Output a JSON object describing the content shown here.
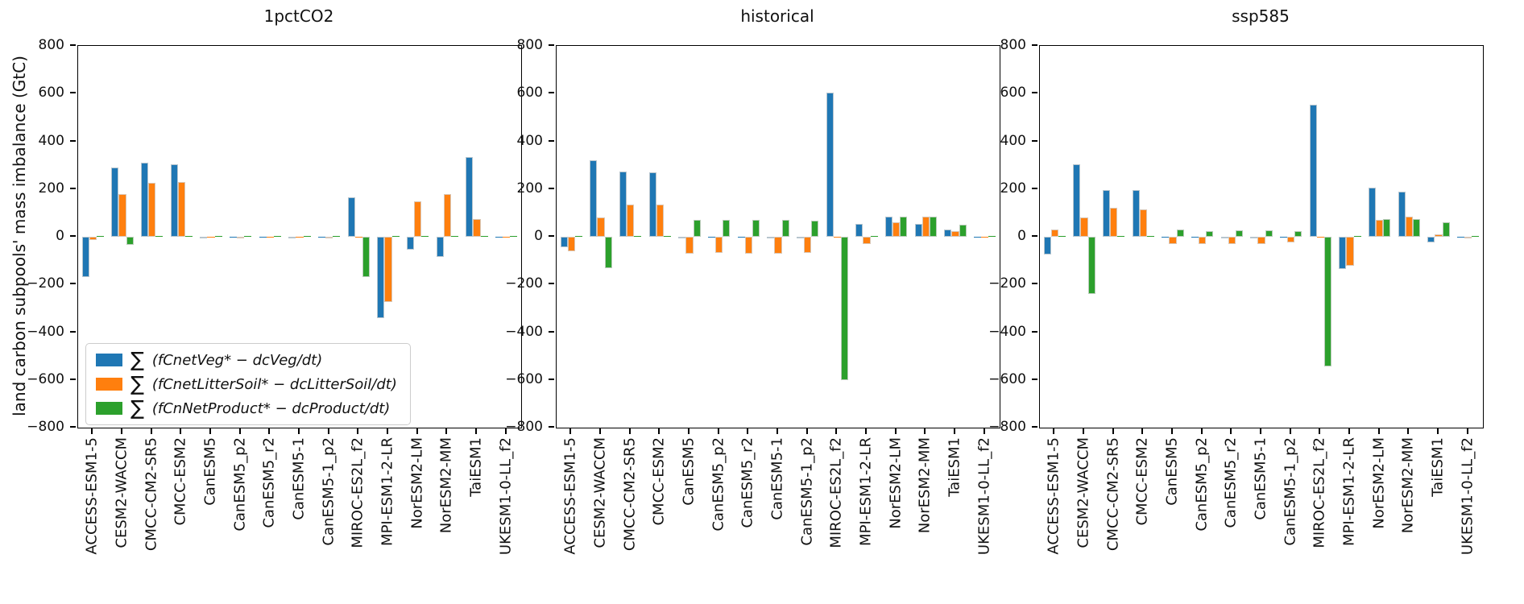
{
  "figure": {
    "ylabel": "land carbon subpools' mass imbalance (GtC)",
    "background_color": "#ffffff",
    "series_colors": {
      "veg": "#1f77b4",
      "litter_soil": "#ff7f0e",
      "product": "#2ca02c"
    }
  },
  "legend": {
    "position": "lower left of first panel",
    "items": [
      {
        "sigma": "∑",
        "formula": "(fCnetVeg* − dcVeg/dt)",
        "label": "∑(fCnetVeg* − dcVeg/dt)",
        "color": "#1f77b4"
      },
      {
        "sigma": "∑",
        "formula": "(fCnetLitterSoil* − dcLitterSoil/dt)",
        "label": "∑(fCnetLitterSoil* − dcLitterSoil/dt)",
        "color": "#ff7f0e"
      },
      {
        "sigma": "∑",
        "formula": "(fCnNetProduct* − dcProduct/dt)",
        "label": "∑(fCnNetProduct* − dcProduct/dt)",
        "color": "#2ca02c"
      }
    ]
  },
  "chart_data": [
    {
      "type": "bar",
      "title": "1pctCO2",
      "ylim": [
        -800,
        800
      ],
      "yticks": [
        800,
        600,
        400,
        200,
        0,
        -200,
        -400,
        -600,
        -800
      ],
      "grid": false,
      "categories": [
        "ACCESS-ESM1-5",
        "CESM2-WACCM",
        "CMCC-CM2-SR5",
        "CMCC-ESM2",
        "CanESM5",
        "CanESM5_p2",
        "CanESM5_r2",
        "CanESM5-1",
        "CanESM5-1_p2",
        "MIROC-ES2L_f2",
        "MPI-ESM1-2-LR",
        "NorESM2-LM",
        "NorESM2-MM",
        "TaiESM1",
        "UKESM1-0-LL_f2"
      ],
      "series": [
        {
          "name": "∑(fCnetVeg* − dcVeg/dt)",
          "color": "#1f77b4",
          "values": [
            -170,
            290,
            310,
            305,
            -5,
            -2,
            -3,
            -8,
            -2,
            165,
            -340,
            -55,
            -85,
            335,
            -2
          ]
        },
        {
          "name": "∑(fCnetLitterSoil* − dcLitterSoil/dt)",
          "color": "#ff7f0e",
          "values": [
            -15,
            180,
            225,
            230,
            -2,
            -5,
            -2,
            -2,
            -5,
            -3,
            -275,
            150,
            180,
            75,
            -3
          ]
        },
        {
          "name": "∑(fCnNetProduct* − dcProduct/dt)",
          "color": "#2ca02c",
          "values": [
            0,
            -35,
            0,
            0,
            0,
            0,
            0,
            0,
            0,
            -170,
            0,
            0,
            0,
            0,
            0
          ]
        }
      ]
    },
    {
      "type": "bar",
      "title": "historical",
      "ylim": [
        -800,
        800
      ],
      "yticks": [
        800,
        600,
        400,
        200,
        0,
        -200,
        -400,
        -600,
        -800
      ],
      "grid": false,
      "categories": [
        "ACCESS-ESM1-5",
        "CESM2-WACCM",
        "CMCC-CM2-SR5",
        "CMCC-ESM2",
        "CanESM5",
        "CanESM5_p2",
        "CanESM5_r2",
        "CanESM5-1",
        "CanESM5-1_p2",
        "MIROC-ES2L_f2",
        "MPI-ESM1-2-LR",
        "NorESM2-LM",
        "NorESM2-MM",
        "TaiESM1",
        "UKESM1-0-LL_f2"
      ],
      "series": [
        {
          "name": "∑(fCnetVeg* − dcVeg/dt)",
          "color": "#1f77b4",
          "values": [
            -45,
            320,
            275,
            270,
            -5,
            -2,
            -2,
            -5,
            -5,
            605,
            55,
            85,
            55,
            30,
            -2
          ]
        },
        {
          "name": "∑(fCnetLitterSoil* − dcLitterSoil/dt)",
          "color": "#ff7f0e",
          "values": [
            -60,
            80,
            135,
            135,
            -70,
            -68,
            -70,
            -70,
            -68,
            -3,
            -30,
            60,
            85,
            25,
            -2
          ]
        },
        {
          "name": "∑(fCnNetProduct* − dcProduct/dt)",
          "color": "#2ca02c",
          "values": [
            0,
            -130,
            0,
            0,
            70,
            70,
            70,
            70,
            68,
            -600,
            0,
            85,
            85,
            50,
            0
          ]
        }
      ]
    },
    {
      "type": "bar",
      "title": "ssp585",
      "ylim": [
        -800,
        800
      ],
      "yticks": [
        800,
        600,
        400,
        200,
        0,
        -200,
        -400,
        -600,
        -800
      ],
      "grid": false,
      "categories": [
        "ACCESS-ESM1-5",
        "CESM2-WACCM",
        "CMCC-CM2-SR5",
        "CMCC-ESM2",
        "CanESM5",
        "CanESM5_p2",
        "CanESM5_r2",
        "CanESM5-1",
        "CanESM5-1_p2",
        "MIROC-ES2L_f2",
        "MPI-ESM1-2-LR",
        "NorESM2-LM",
        "NorESM2-MM",
        "TaiESM1",
        "UKESM1-0-LL_f2"
      ],
      "series": [
        {
          "name": "∑(fCnetVeg* − dcVeg/dt)",
          "color": "#1f77b4",
          "values": [
            -75,
            305,
            195,
            195,
            -3,
            -2,
            -5,
            -8,
            -2,
            555,
            -135,
            205,
            190,
            -25,
            -2
          ]
        },
        {
          "name": "∑(fCnetLitterSoil* − dcLitterSoil/dt)",
          "color": "#ff7f0e",
          "values": [
            30,
            80,
            120,
            115,
            -30,
            -30,
            -30,
            -30,
            -25,
            -3,
            -120,
            70,
            85,
            10,
            -5
          ]
        },
        {
          "name": "∑(fCnNetProduct* − dcProduct/dt)",
          "color": "#2ca02c",
          "values": [
            2,
            -240,
            0,
            0,
            30,
            25,
            28,
            28,
            25,
            -545,
            0,
            75,
            75,
            60,
            0
          ]
        }
      ]
    }
  ]
}
